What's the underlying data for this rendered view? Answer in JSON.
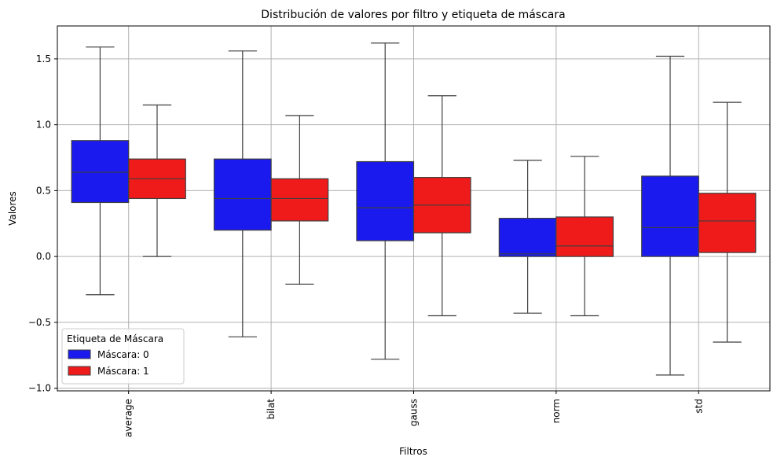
{
  "chart_data": {
    "type": "box",
    "title": "Distribución de valores por filtro y etiqueta de máscara",
    "xlabel": "Filtros",
    "ylabel": "Valores",
    "categories": [
      "average",
      "bilat",
      "gauss",
      "norm",
      "std"
    ],
    "ylim": [
      -1.02,
      1.75
    ],
    "yticks": [
      -1.0,
      -0.5,
      0.0,
      0.5,
      1.0,
      1.5
    ],
    "ytick_labels": [
      "−1.0",
      "−0.5",
      "0.0",
      "0.5",
      "1.0",
      "1.5"
    ],
    "grid": true,
    "legend": {
      "title": "Etiqueta de Máscara",
      "placement": "lower-left"
    },
    "series": [
      {
        "name": "Máscara: 0",
        "color": "#1a1aef",
        "boxes": [
          {
            "whisker_low": -0.29,
            "q1": 0.41,
            "median": 0.64,
            "q3": 0.88,
            "whisker_high": 1.59
          },
          {
            "whisker_low": -0.61,
            "q1": 0.2,
            "median": 0.44,
            "q3": 0.74,
            "whisker_high": 1.56
          },
          {
            "whisker_low": -0.78,
            "q1": 0.12,
            "median": 0.37,
            "q3": 0.72,
            "whisker_high": 1.62
          },
          {
            "whisker_low": -0.43,
            "q1": 0.0,
            "median": 0.02,
            "q3": 0.29,
            "whisker_high": 0.73
          },
          {
            "whisker_low": -0.9,
            "q1": 0.0,
            "median": 0.22,
            "q3": 0.61,
            "whisker_high": 1.52
          }
        ]
      },
      {
        "name": "Máscara: 1",
        "color": "#ef1a1a",
        "boxes": [
          {
            "whisker_low": 0.0,
            "q1": 0.44,
            "median": 0.59,
            "q3": 0.74,
            "whisker_high": 1.15
          },
          {
            "whisker_low": -0.21,
            "q1": 0.27,
            "median": 0.44,
            "q3": 0.59,
            "whisker_high": 1.07
          },
          {
            "whisker_low": -0.45,
            "q1": 0.18,
            "median": 0.39,
            "q3": 0.6,
            "whisker_high": 1.22
          },
          {
            "whisker_low": -0.45,
            "q1": 0.0,
            "median": 0.08,
            "q3": 0.3,
            "whisker_high": 0.76
          },
          {
            "whisker_low": -0.65,
            "q1": 0.03,
            "median": 0.27,
            "q3": 0.48,
            "whisker_high": 1.17
          }
        ]
      }
    ]
  }
}
